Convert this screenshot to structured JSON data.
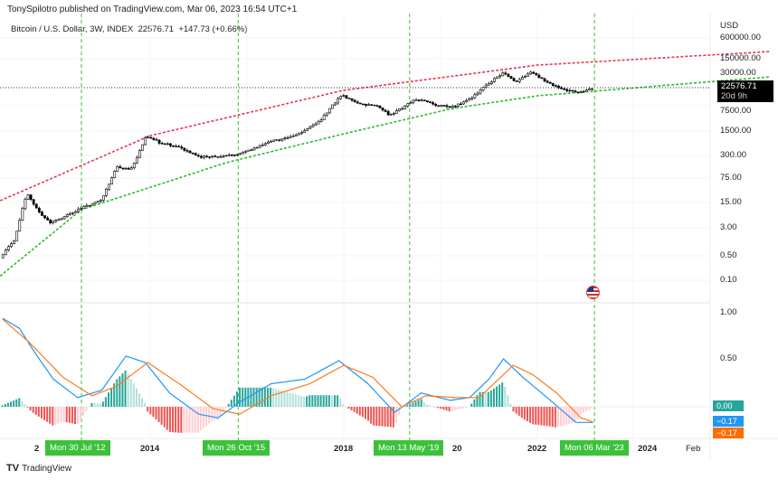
{
  "header": {
    "publisher": "TonySpilotro published on TradingView.com, Mar 06, 2023 16:54 UTC+1",
    "symbol": "Bitcoin / U.S. Dollar, 3W, INDEX",
    "last": "22576.71",
    "change": "+147.73 (+0.66%)"
  },
  "price_axis": {
    "currency": "USD",
    "ticks": [
      "600000.00",
      "150000.00",
      "30000.00",
      "7500.00",
      "1500.00",
      "300.00",
      "75.00",
      "15.00",
      "3.00",
      "0.50",
      "0.10"
    ],
    "last_tag": "22576.71",
    "countdown": "20d 9h"
  },
  "macd_axis": {
    "ticks": [
      "1.00",
      "0.50"
    ],
    "zero_tag": "0.00",
    "macd_tag": "−0.17",
    "signal_tag": "−0.17"
  },
  "time_axis": {
    "ticks": [
      "2",
      "2014",
      "2018",
      "20",
      "2022",
      "2024",
      "Feb"
    ],
    "markers": [
      "Mon 30 Jul '12",
      "Mon 26 Oct '15",
      "Mon 13 May '19",
      "Mon 06 Mar '23"
    ]
  },
  "footer": {
    "brand": "TradingView"
  },
  "colors": {
    "upper_band": "#e8334f",
    "lower_band": "#2fb82f",
    "macd": "#2196f3",
    "signal": "#ff7a1a",
    "hist_up": "#26a69a",
    "hist_up_light": "#b2dfdb",
    "hist_down": "#ef5350",
    "hist_down_light": "#ffcdd2",
    "marker": "#3cc13b"
  },
  "chart_data": [
    {
      "type": "line",
      "title": "Bitcoin / U.S. Dollar, 3W, INDEX",
      "yscale": "log",
      "ylim": [
        0.05,
        900000
      ],
      "grid": true,
      "series": [
        {
          "kind": "candles-close",
          "points": [
            [
              2010.9,
              0.3
            ],
            [
              2011.2,
              1
            ],
            [
              2011.45,
              22
            ],
            [
              2011.7,
              6
            ],
            [
              2011.95,
              3
            ],
            [
              2012.3,
              5
            ],
            [
              2012.58,
              8
            ],
            [
              2013.0,
              14
            ],
            [
              2013.3,
              120
            ],
            [
              2013.6,
              100
            ],
            [
              2013.92,
              900
            ],
            [
              2014.2,
              600
            ],
            [
              2014.6,
              450
            ],
            [
              2015.0,
              230
            ],
            [
              2015.5,
              250
            ],
            [
              2015.82,
              280
            ],
            [
              2016.5,
              650
            ],
            [
              2017.0,
              950
            ],
            [
              2017.5,
              2500
            ],
            [
              2017.95,
              14000
            ],
            [
              2018.3,
              8000
            ],
            [
              2018.7,
              6500
            ],
            [
              2018.95,
              3600
            ],
            [
              2019.5,
              10500
            ],
            [
              2019.9,
              7300
            ],
            [
              2020.2,
              6000
            ],
            [
              2020.6,
              10500
            ],
            [
              2020.95,
              28000
            ],
            [
              2021.3,
              58000
            ],
            [
              2021.55,
              33000
            ],
            [
              2021.85,
              61000
            ],
            [
              2022.1,
              40000
            ],
            [
              2022.45,
              21000
            ],
            [
              2022.9,
              16500
            ],
            [
              2023.18,
              22576.71
            ]
          ]
        },
        {
          "kind": "upper-band",
          "points": [
            [
              2010.9,
              13
            ],
            [
              2014,
              950
            ],
            [
              2018,
              19000
            ],
            [
              2022,
              100000
            ],
            [
              2026.8,
              245000
            ]
          ]
        },
        {
          "kind": "lower-band",
          "points": [
            [
              2010.9,
              0.09
            ],
            [
              2012.58,
              7.2
            ],
            [
              2015.57,
              160
            ],
            [
              2018,
              1070
            ],
            [
              2020.24,
              5700
            ],
            [
              2022,
              13200
            ],
            [
              2026.8,
              46000
            ]
          ]
        },
        {
          "kind": "last-price-line",
          "value": 22576.71
        }
      ],
      "markers_x": [
        2012.58,
        2015.82,
        2019.36,
        2023.18
      ]
    },
    {
      "type": "line",
      "ylim": [
        -0.3,
        1.05
      ],
      "series": [
        {
          "kind": "macd",
          "points": [
            [
              2010.95,
              0.96
            ],
            [
              2011.3,
              0.85
            ],
            [
              2011.6,
              0.6
            ],
            [
              2012.0,
              0.3
            ],
            [
              2012.5,
              0.1
            ],
            [
              2013.0,
              0.18
            ],
            [
              2013.5,
              0.55
            ],
            [
              2013.9,
              0.48
            ],
            [
              2014.4,
              0.15
            ],
            [
              2015.0,
              -0.08
            ],
            [
              2015.4,
              -0.12
            ],
            [
              2015.85,
              0.05
            ],
            [
              2016.5,
              0.25
            ],
            [
              2017.2,
              0.3
            ],
            [
              2017.9,
              0.5
            ],
            [
              2018.5,
              0.25
            ],
            [
              2019.05,
              -0.06
            ],
            [
              2019.35,
              0.05
            ],
            [
              2019.6,
              0.15
            ],
            [
              2020.2,
              0.07
            ],
            [
              2020.6,
              0.1
            ],
            [
              2021.0,
              0.3
            ],
            [
              2021.3,
              0.52
            ],
            [
              2021.7,
              0.32
            ],
            [
              2022.2,
              0.1
            ],
            [
              2022.8,
              -0.17
            ],
            [
              2023.18,
              -0.17
            ]
          ]
        },
        {
          "kind": "signal",
          "points": [
            [
              2010.95,
              0.95
            ],
            [
              2011.5,
              0.7
            ],
            [
              2012.2,
              0.32
            ],
            [
              2012.8,
              0.12
            ],
            [
              2013.3,
              0.22
            ],
            [
              2013.95,
              0.48
            ],
            [
              2014.6,
              0.25
            ],
            [
              2015.3,
              -0.02
            ],
            [
              2015.85,
              -0.08
            ],
            [
              2016.5,
              0.12
            ],
            [
              2017.3,
              0.25
            ],
            [
              2018.0,
              0.45
            ],
            [
              2018.6,
              0.32
            ],
            [
              2019.2,
              0.0
            ],
            [
              2019.7,
              0.12
            ],
            [
              2020.3,
              0.1
            ],
            [
              2020.8,
              0.1
            ],
            [
              2021.2,
              0.3
            ],
            [
              2021.5,
              0.45
            ],
            [
              2021.9,
              0.35
            ],
            [
              2022.4,
              0.15
            ],
            [
              2022.9,
              -0.12
            ],
            [
              2023.18,
              -0.17
            ]
          ]
        }
      ]
    }
  ]
}
